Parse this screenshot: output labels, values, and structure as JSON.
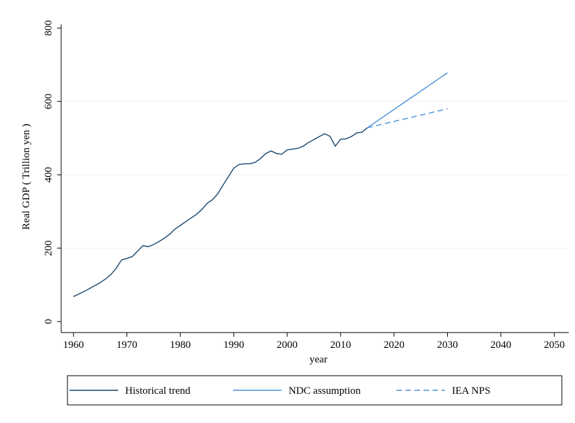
{
  "chart_data": {
    "type": "line",
    "x_label": "year",
    "y_label": "Real GDP ( Trillion yen )",
    "xlim": [
      1957.7,
      2052.7
    ],
    "xticks": [
      1960,
      1970,
      1980,
      1990,
      2000,
      2010,
      2020,
      2030,
      2040,
      2050
    ],
    "ylim": [
      -30,
      810
    ],
    "yticks": [
      0,
      200,
      400,
      600,
      800
    ],
    "grid": true,
    "legend": "bottom",
    "series": [
      {
        "name": "Historical trend",
        "color": "#1a476f",
        "dash": false,
        "x": [
          1960,
          1961,
          1962,
          1963,
          1964,
          1965,
          1966,
          1967,
          1968,
          1969,
          1970,
          1971,
          1972,
          1973,
          1974,
          1975,
          1976,
          1977,
          1978,
          1979,
          1980,
          1981,
          1982,
          1983,
          1984,
          1985,
          1986,
          1987,
          1988,
          1989,
          1990,
          1991,
          1992,
          1993,
          1994,
          1995,
          1996,
          1997,
          1998,
          1999,
          2000,
          2001,
          2002,
          2003,
          2004,
          2005,
          2006,
          2007,
          2008,
          2009,
          2010,
          2011,
          2012,
          2013,
          2014,
          2015
        ],
        "values": [
          68,
          75,
          82,
          90,
          98,
          106,
          116,
          128,
          145,
          168,
          172,
          177,
          192,
          207,
          204,
          210,
          218,
          227,
          238,
          252,
          262,
          272,
          282,
          292,
          305,
          322,
          332,
          348,
          372,
          395,
          418,
          428,
          430,
          430,
          434,
          444,
          458,
          465,
          458,
          456,
          468,
          470,
          472,
          478,
          488,
          496,
          504,
          512,
          505,
          478,
          497,
          498,
          504,
          514,
          516,
          528
        ]
      },
      {
        "name": "NDC assumption",
        "color": "#4a8fd6",
        "dash": false,
        "x": [
          2015,
          2030
        ],
        "values": [
          528,
          678
        ]
      },
      {
        "name": "IEA NPS",
        "color": "#4a8fd6",
        "dash": true,
        "x": [
          2015,
          2030
        ],
        "values": [
          528,
          580
        ]
      }
    ]
  }
}
